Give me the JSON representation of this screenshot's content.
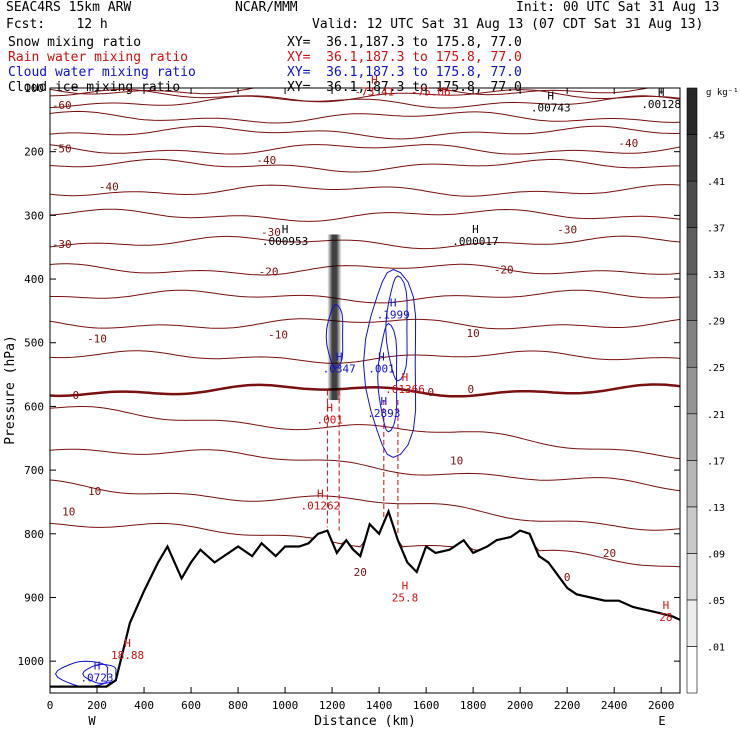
{
  "header": {
    "model": "SEAC4RS 15km ARW",
    "org": "NCAR/MMM",
    "init": "Init: 00 UTC Sat 31 Aug 13",
    "fcst": "Fcst:    12 h",
    "valid": "Valid: 12 UTC Sat 31 Aug 13 (07 CDT Sat 31 Aug 13)",
    "fields": [
      {
        "name": "Snow mixing ratio",
        "xy": "XY=  36.1,187.3 to 175.8, 77.0",
        "color": "#000000"
      },
      {
        "name": "Rain water mixing ratio",
        "xy": "XY=  36.1,187.3 to 175.8, 77.0",
        "color": "#d01010"
      },
      {
        "name": "Cloud water mixing ratio",
        "xy": "XY=  36.1,187.3 to 175.8, 77.0",
        "color": "#1010d0"
      },
      {
        "name": "Cloud ice mixing ratio",
        "xy": "XY=  36.1,187.3 to 175.8, 77.0",
        "color": "#000000"
      }
    ]
  },
  "chart_data": {
    "type": "cross-section contour",
    "xlabel": "Distance (km)",
    "ylabel": "Pressure (hPa)",
    "xlim": [
      0,
      2680
    ],
    "ylim": [
      1050,
      100
    ],
    "x_ticks": [
      0,
      200,
      400,
      600,
      800,
      1000,
      1200,
      1400,
      1600,
      1800,
      2000,
      2200,
      2400,
      2600
    ],
    "y_ticks": [
      100,
      200,
      300,
      400,
      500,
      600,
      700,
      800,
      900,
      1000
    ],
    "y_tick_labels": [
      "100",
      "200",
      "300",
      "400",
      "500",
      "600",
      "700",
      "800",
      "900",
      "1000"
    ],
    "x_end_labels": {
      "left": "W",
      "right": "E"
    },
    "colorbar": {
      "unit": "g kg⁻¹",
      "levels": [
        0.01,
        0.05,
        0.09,
        0.13,
        0.17,
        0.21,
        0.25,
        0.29,
        0.33,
        0.37,
        0.41,
        0.45
      ],
      "labels": [
        ".01",
        ".05",
        ".09",
        ".13",
        ".17",
        ".21",
        ".25",
        ".29",
        ".33",
        ".37",
        ".41",
        ".45"
      ]
    },
    "temperature_contours_C": [
      -70,
      -60,
      -50,
      -40,
      -30,
      -20,
      -10,
      0,
      10,
      20
    ],
    "temperature_labels": [
      {
        "t": "-60",
        "x": 50,
        "p": 127
      },
      {
        "t": "-50",
        "x": 50,
        "p": 195
      },
      {
        "t": "-40",
        "x": 250,
        "p": 255
      },
      {
        "t": "-40",
        "x": 920,
        "p": 213
      },
      {
        "t": "-40",
        "x": 2460,
        "p": 186
      },
      {
        "t": "-30",
        "x": 50,
        "p": 345
      },
      {
        "t": "-30",
        "x": 940,
        "p": 326
      },
      {
        "t": "-30",
        "x": 2200,
        "p": 322
      },
      {
        "t": "-20",
        "x": 930,
        "p": 388
      },
      {
        "t": "-20",
        "x": 1930,
        "p": 385
      },
      {
        "t": "-10",
        "x": 200,
        "p": 493
      },
      {
        "t": "-10",
        "x": 970,
        "p": 487
      },
      {
        "t": "10",
        "x": 1800,
        "p": 485
      },
      {
        "t": "0",
        "x": 110,
        "p": 582
      },
      {
        "t": "0",
        "x": 1620,
        "p": 577
      },
      {
        "t": "0",
        "x": 1790,
        "p": 573
      },
      {
        "t": "10",
        "x": 1730,
        "p": 685
      },
      {
        "t": "10",
        "x": 190,
        "p": 733
      },
      {
        "t": "10",
        "x": 80,
        "p": 765
      },
      {
        "t": "20",
        "x": 2380,
        "p": 830
      },
      {
        "t": "20",
        "x": 1320,
        "p": 860
      },
      {
        "t": "0",
        "x": 2200,
        "p": 868
      }
    ],
    "extrema": [
      {
        "mark": "H",
        "value": "-73.41",
        "x": 1380,
        "p": 110,
        "color": "#d01010"
      },
      {
        "mark": "",
        "value": "-75.06",
        "x": 1620,
        "p": 110,
        "color": "#d01010"
      },
      {
        "mark": "H",
        "value": ".00743",
        "x": 2130,
        "p": 135,
        "color": "#000000"
      },
      {
        "mark": "H",
        "value": ".00128",
        "x": 2600,
        "p": 130,
        "color": "#000000"
      },
      {
        "mark": "H",
        "value": ".000953",
        "x": 1000,
        "p": 345,
        "color": "#000000"
      },
      {
        "mark": "H",
        "value": ".000017",
        "x": 1810,
        "p": 345,
        "color": "#000000"
      },
      {
        "mark": "H",
        "value": ".1999",
        "x": 1460,
        "p": 460,
        "color": "#1010d0"
      },
      {
        "mark": "H",
        "value": ".0347",
        "x": 1230,
        "p": 545,
        "color": "#1010d0"
      },
      {
        "mark": "H",
        "value": ".001",
        "x": 1410,
        "p": 545,
        "color": "#1010d0"
      },
      {
        "mark": "H",
        "value": ".01366",
        "x": 1510,
        "p": 577,
        "color": "#d01010"
      },
      {
        "mark": "H",
        "value": ".2893",
        "x": 1420,
        "p": 615,
        "color": "#1010d0"
      },
      {
        "mark": "H",
        "value": ".001",
        "x": 1190,
        "p": 625,
        "color": "#d01010"
      },
      {
        "mark": "H",
        "value": ".01262",
        "x": 1150,
        "p": 760,
        "color": "#d01010"
      },
      {
        "mark": "H",
        "value": "25.8",
        "x": 1510,
        "p": 905,
        "color": "#d01010"
      },
      {
        "mark": "H",
        "value": "18.88",
        "x": 330,
        "p": 995,
        "color": "#d01010"
      },
      {
        "mark": "H",
        "value": ".0723",
        "x": 200,
        "p": 1030,
        "color": "#1010d0"
      },
      {
        "mark": "H",
        "value": "28",
        "x": 2620,
        "p": 935,
        "color": "#d01010"
      }
    ],
    "terrain_pressure_hPa": {
      "x": [
        0,
        240,
        280,
        300,
        340,
        400,
        460,
        500,
        560,
        600,
        640,
        700,
        760,
        800,
        860,
        900,
        960,
        1000,
        1060,
        1100,
        1140,
        1180,
        1220,
        1260,
        1290,
        1320,
        1360,
        1400,
        1440,
        1480,
        1520,
        1560,
        1600,
        1640,
        1700,
        1760,
        1800,
        1860,
        1900,
        1960,
        2000,
        2040,
        2080,
        2120,
        2160,
        2200,
        2240,
        2300,
        2360,
        2420,
        2480,
        2540,
        2600,
        2650,
        2680
      ],
      "p": [
        1040,
        1040,
        1030,
        1000,
        940,
        890,
        845,
        820,
        870,
        845,
        825,
        845,
        830,
        820,
        835,
        815,
        835,
        820,
        820,
        815,
        800,
        795,
        830,
        810,
        825,
        835,
        785,
        800,
        765,
        810,
        845,
        860,
        820,
        830,
        825,
        810,
        830,
        820,
        810,
        805,
        795,
        800,
        835,
        845,
        865,
        885,
        895,
        900,
        905,
        905,
        915,
        920,
        925,
        930,
        935
      ]
    },
    "zero_isotherm_p": 575,
    "snow_column": {
      "x": [
        1180,
        1240
      ],
      "p_top": 330,
      "p_bottom": 590
    }
  }
}
